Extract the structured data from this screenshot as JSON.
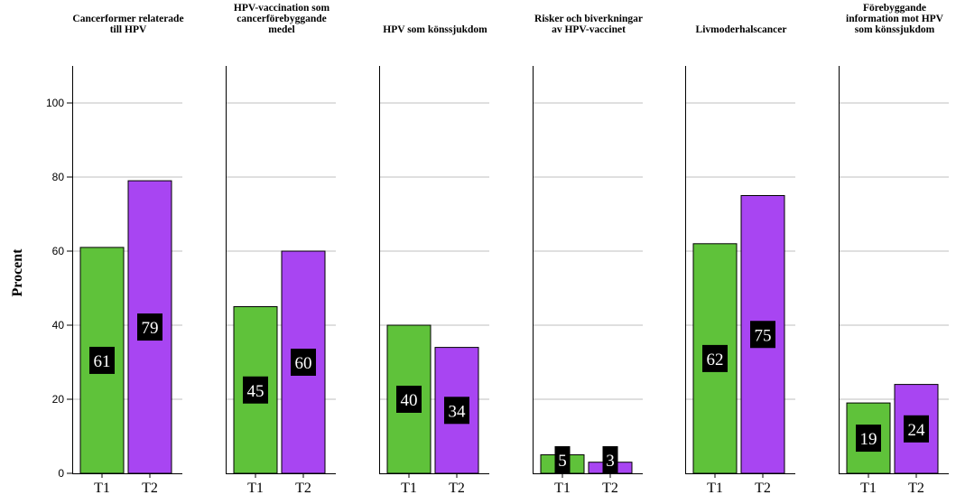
{
  "chart_data": {
    "type": "bar",
    "ylabel": "Procent",
    "ylim": [
      0,
      110
    ],
    "yticks": [
      0,
      20,
      40,
      60,
      80,
      100
    ],
    "grid": true,
    "categories": [
      "T1",
      "T2"
    ],
    "series_colors": {
      "T1": "#5fc23a",
      "T2": "#a845f2"
    },
    "panels": [
      {
        "title_lines": [
          "Cancerformer relaterade",
          "till HPV"
        ],
        "values": [
          61,
          79
        ],
        "labels": [
          "61",
          "79"
        ]
      },
      {
        "title_lines": [
          "HPV-vaccination som",
          "cancerförebyggande",
          "medel"
        ],
        "values": [
          45,
          60
        ],
        "labels": [
          "45",
          "60"
        ]
      },
      {
        "title_lines": [
          "HPV som könssjukdom"
        ],
        "values": [
          40,
          34
        ],
        "labels": [
          "40",
          "34"
        ]
      },
      {
        "title_lines": [
          "Risker och biverkningar",
          "av HPV-vaccinet"
        ],
        "values": [
          5,
          3
        ],
        "labels": [
          "5",
          "3"
        ]
      },
      {
        "title_lines": [
          "Livmoderhalscancer"
        ],
        "values": [
          62,
          75
        ],
        "labels": [
          "62",
          "75"
        ]
      },
      {
        "title_lines": [
          "Förebyggande",
          "information mot HPV",
          "som könssjukdom"
        ],
        "values": [
          19,
          24
        ],
        "labels": [
          "19",
          "24"
        ]
      }
    ]
  }
}
